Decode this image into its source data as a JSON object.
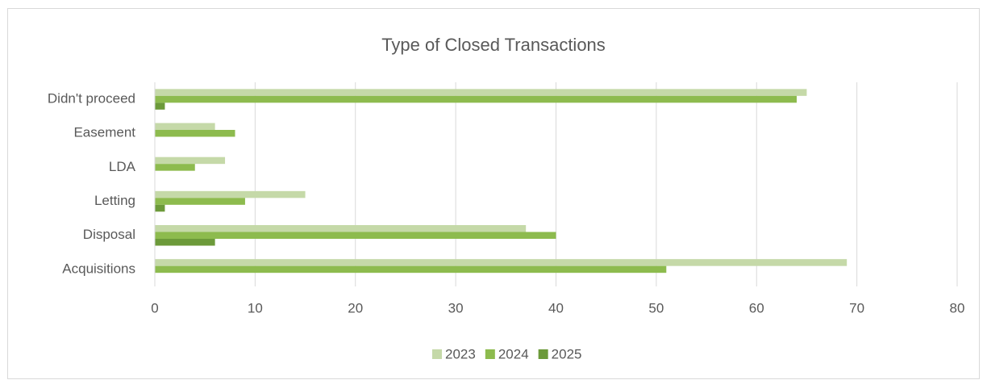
{
  "chart_data": {
    "type": "bar",
    "orientation": "horizontal",
    "title": "Type of Closed Transactions",
    "categories": [
      "Didn't proceed",
      "Easement",
      "LDA",
      "Letting",
      "Disposal",
      "Acquisitions"
    ],
    "series": [
      {
        "name": "2023",
        "color": "#c5d9a8",
        "values": [
          65,
          6,
          7,
          15,
          37,
          69
        ]
      },
      {
        "name": "2024",
        "color": "#8dbb4e",
        "values": [
          64,
          8,
          4,
          9,
          40,
          51
        ]
      },
      {
        "name": "2025",
        "color": "#6c9a3a",
        "values": [
          1,
          0,
          0,
          1,
          6,
          0
        ]
      }
    ],
    "xlim": [
      0,
      80
    ],
    "xticks": [
      0,
      10,
      20,
      30,
      40,
      50,
      60,
      70,
      80
    ],
    "grid": true,
    "legend": "bottom"
  }
}
